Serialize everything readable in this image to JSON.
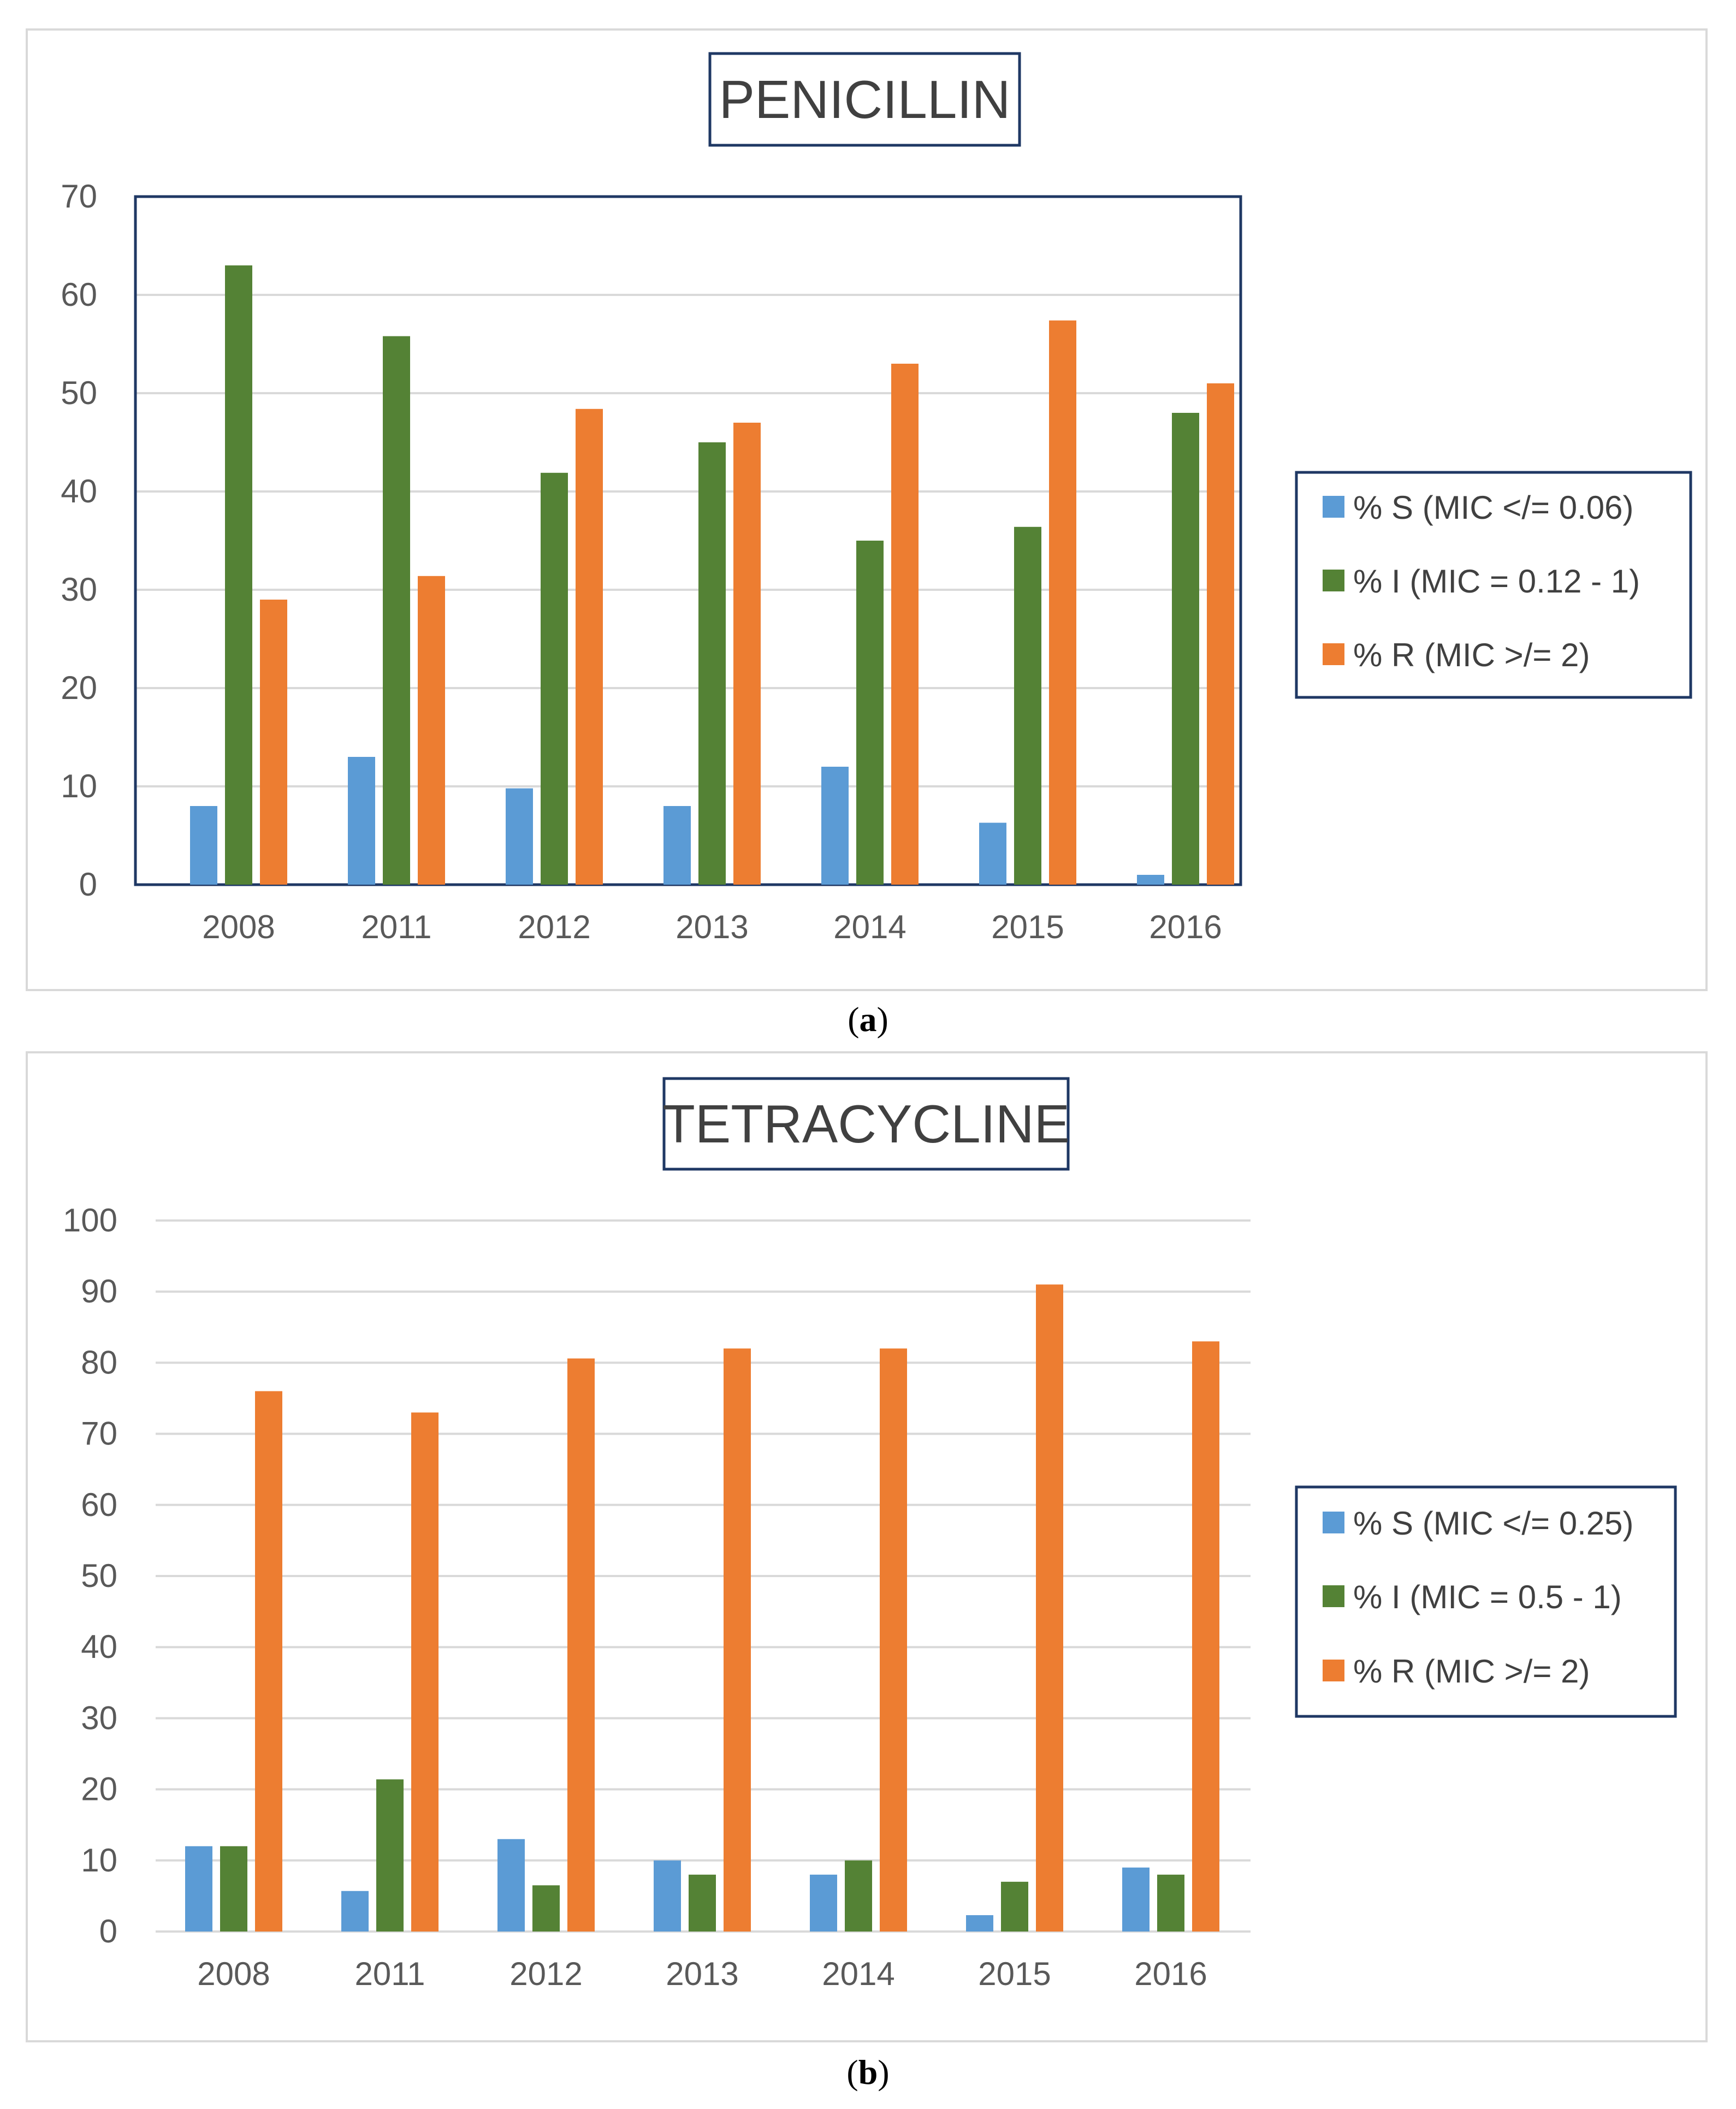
{
  "panels": {
    "a": {
      "label": "a"
    },
    "b": {
      "label": "b"
    }
  },
  "colors": {
    "s": "#5b9bd5",
    "i": "#548235",
    "r": "#ed7d31",
    "frame": "#1f3864",
    "grid": "#d9d9d9"
  },
  "chart_data": [
    {
      "type": "bar",
      "title": "PENICILLIN",
      "categories": [
        "2008",
        "2011",
        "2012",
        "2013",
        "2014",
        "2015",
        "2016"
      ],
      "ylim": [
        0,
        70
      ],
      "yticks": [
        0,
        10,
        20,
        30,
        40,
        50,
        60,
        70
      ],
      "xlabel": "",
      "ylabel": "",
      "legend_position": "right",
      "series": [
        {
          "name": "% S (MIC </= 0.06)",
          "values": [
            8,
            13,
            9.8,
            8,
            12,
            6.3,
            1
          ]
        },
        {
          "name": "% I (MIC = 0.12 - 1)",
          "values": [
            63,
            55.8,
            41.9,
            45,
            35,
            36.4,
            48
          ]
        },
        {
          "name": "% R (MIC >/= 2)",
          "values": [
            29,
            31.4,
            48.4,
            47,
            53,
            57.4,
            51
          ]
        }
      ]
    },
    {
      "type": "bar",
      "title": "TETRACYCLINE",
      "categories": [
        "2008",
        "2011",
        "2012",
        "2013",
        "2014",
        "2015",
        "2016"
      ],
      "ylim": [
        0,
        100
      ],
      "yticks": [
        0,
        10,
        20,
        30,
        40,
        50,
        60,
        70,
        80,
        90,
        100
      ],
      "xlabel": "",
      "ylabel": "",
      "legend_position": "right",
      "series": [
        {
          "name": "% S (MIC </= 0.25)",
          "values": [
            12,
            5.7,
            13,
            10,
            8,
            2.3,
            9
          ]
        },
        {
          "name": "% I (MIC = 0.5 - 1)",
          "values": [
            12,
            21.4,
            6.5,
            8,
            10,
            7,
            8
          ]
        },
        {
          "name": "% R (MIC >/= 2)",
          "values": [
            76,
            73,
            80.6,
            82,
            82,
            91,
            83
          ]
        }
      ]
    }
  ]
}
